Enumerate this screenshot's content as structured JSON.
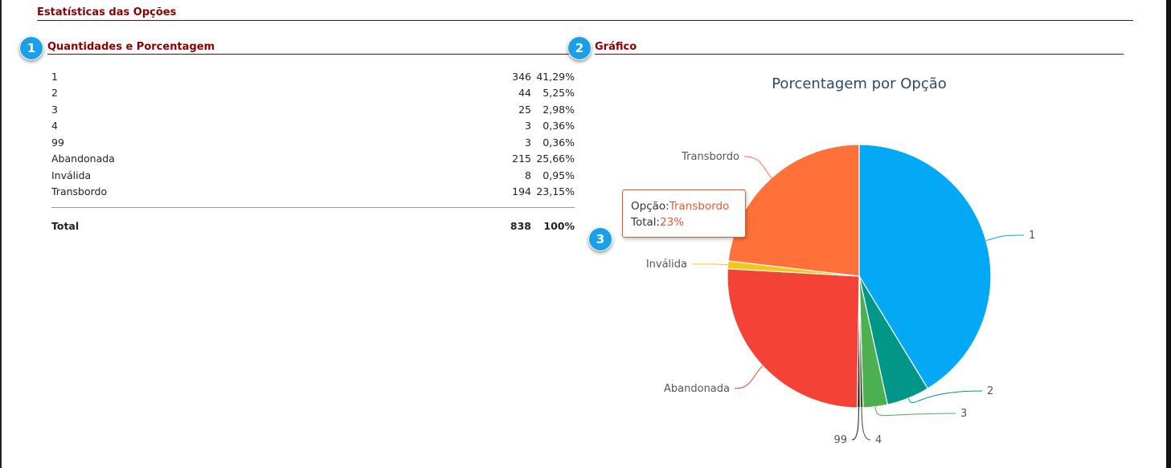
{
  "header": {
    "title": "Estatísticas das Opções"
  },
  "quantities": {
    "badge": "1",
    "title": "Quantidades e Porcentagem",
    "rows": [
      {
        "label": "1",
        "count": "346",
        "percent": "41,29%"
      },
      {
        "label": "2",
        "count": "44",
        "percent": "5,25%"
      },
      {
        "label": "3",
        "count": "25",
        "percent": "2,98%"
      },
      {
        "label": "4",
        "count": "3",
        "percent": "0,36%"
      },
      {
        "label": "99",
        "count": "3",
        "percent": "0,36%"
      },
      {
        "label": "Abandonada",
        "count": "215",
        "percent": "25,66%"
      },
      {
        "label": "Inválida",
        "count": "8",
        "percent": "0,95%"
      },
      {
        "label": "Transbordo",
        "count": "194",
        "percent": "23,15%"
      }
    ],
    "total": {
      "label": "Total",
      "count": "838",
      "percent": "100%"
    }
  },
  "chart": {
    "badge": "2",
    "title": "Gráfico"
  },
  "tooltip": {
    "badge": "3",
    "key1": "Opção:",
    "value1": "Transbordo",
    "key2": "Total:",
    "value2": "23%"
  },
  "chart_data": {
    "type": "pie",
    "title": "Porcentagem por Opção",
    "slices": [
      {
        "label": "1",
        "value": 346,
        "color": "#03a9f4"
      },
      {
        "label": "2",
        "value": 44,
        "color": "#009688"
      },
      {
        "label": "3",
        "value": 25,
        "color": "#4caf50"
      },
      {
        "label": "4",
        "value": 3,
        "color": "#3d4b2c"
      },
      {
        "label": "99",
        "value": 3,
        "color": "#1a1a1a"
      },
      {
        "label": "Abandonada",
        "value": 215,
        "color": "#f44336"
      },
      {
        "label": "Inválida",
        "value": 8,
        "color": "#f5c518"
      },
      {
        "label": "Transbordo",
        "value": 194,
        "color": "#ff7139"
      }
    ]
  }
}
